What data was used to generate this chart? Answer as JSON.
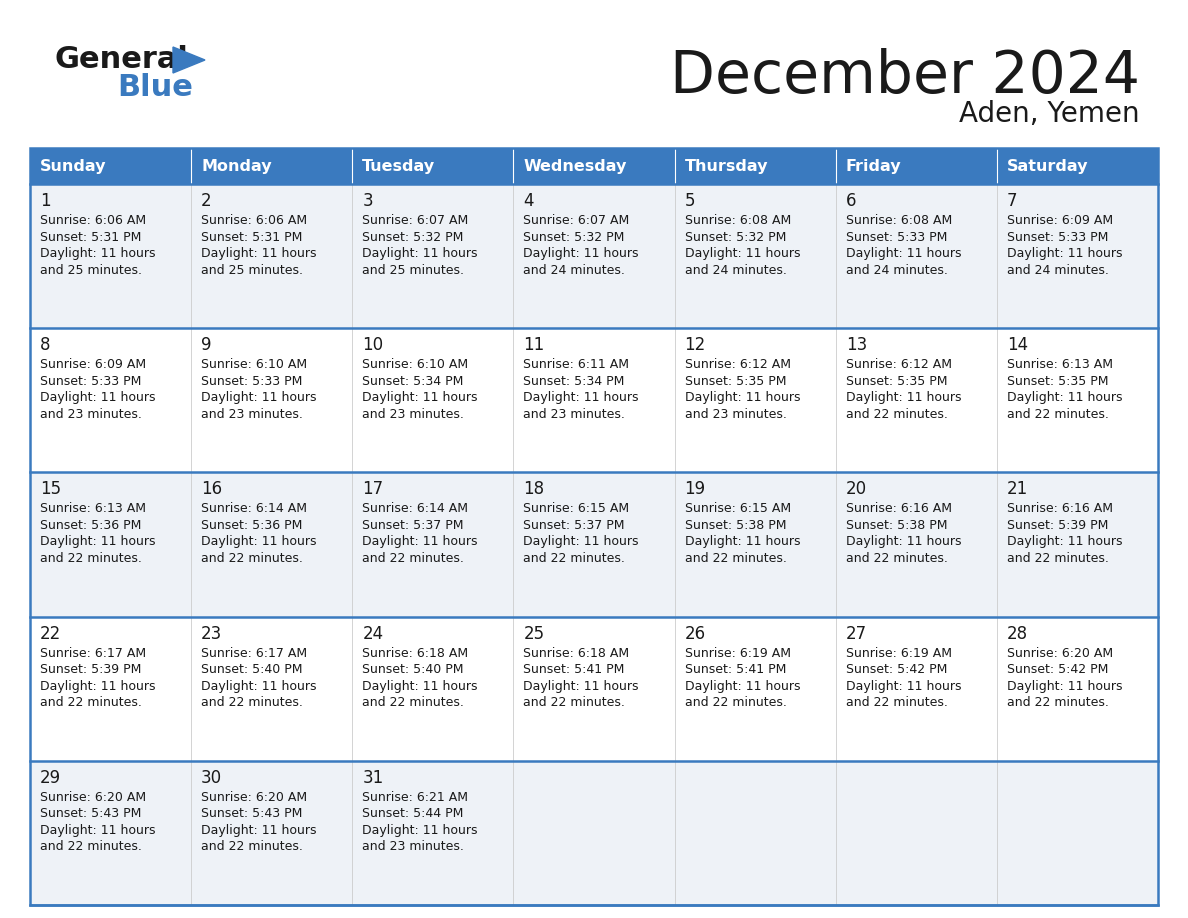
{
  "title": "December 2024",
  "subtitle": "Aden, Yemen",
  "header_color": "#3a7abf",
  "header_text_color": "#ffffff",
  "bg_color": "#ffffff",
  "cell_bg_even": "#eef2f7",
  "cell_bg_odd": "#ffffff",
  "row_line_color": "#3a7abf",
  "days_of_week": [
    "Sunday",
    "Monday",
    "Tuesday",
    "Wednesday",
    "Thursday",
    "Friday",
    "Saturday"
  ],
  "calendar": [
    [
      {
        "day": "1",
        "sunrise": "6:06 AM",
        "sunset": "5:31 PM",
        "daylight_h": "11 hours",
        "daylight_m": "25 minutes."
      },
      {
        "day": "2",
        "sunrise": "6:06 AM",
        "sunset": "5:31 PM",
        "daylight_h": "11 hours",
        "daylight_m": "25 minutes."
      },
      {
        "day": "3",
        "sunrise": "6:07 AM",
        "sunset": "5:32 PM",
        "daylight_h": "11 hours",
        "daylight_m": "25 minutes."
      },
      {
        "day": "4",
        "sunrise": "6:07 AM",
        "sunset": "5:32 PM",
        "daylight_h": "11 hours",
        "daylight_m": "24 minutes."
      },
      {
        "day": "5",
        "sunrise": "6:08 AM",
        "sunset": "5:32 PM",
        "daylight_h": "11 hours",
        "daylight_m": "24 minutes."
      },
      {
        "day": "6",
        "sunrise": "6:08 AM",
        "sunset": "5:33 PM",
        "daylight_h": "11 hours",
        "daylight_m": "24 minutes."
      },
      {
        "day": "7",
        "sunrise": "6:09 AM",
        "sunset": "5:33 PM",
        "daylight_h": "11 hours",
        "daylight_m": "24 minutes."
      }
    ],
    [
      {
        "day": "8",
        "sunrise": "6:09 AM",
        "sunset": "5:33 PM",
        "daylight_h": "11 hours",
        "daylight_m": "23 minutes."
      },
      {
        "day": "9",
        "sunrise": "6:10 AM",
        "sunset": "5:33 PM",
        "daylight_h": "11 hours",
        "daylight_m": "23 minutes."
      },
      {
        "day": "10",
        "sunrise": "6:10 AM",
        "sunset": "5:34 PM",
        "daylight_h": "11 hours",
        "daylight_m": "23 minutes."
      },
      {
        "day": "11",
        "sunrise": "6:11 AM",
        "sunset": "5:34 PM",
        "daylight_h": "11 hours",
        "daylight_m": "23 minutes."
      },
      {
        "day": "12",
        "sunrise": "6:12 AM",
        "sunset": "5:35 PM",
        "daylight_h": "11 hours",
        "daylight_m": "23 minutes."
      },
      {
        "day": "13",
        "sunrise": "6:12 AM",
        "sunset": "5:35 PM",
        "daylight_h": "11 hours",
        "daylight_m": "22 minutes."
      },
      {
        "day": "14",
        "sunrise": "6:13 AM",
        "sunset": "5:35 PM",
        "daylight_h": "11 hours",
        "daylight_m": "22 minutes."
      }
    ],
    [
      {
        "day": "15",
        "sunrise": "6:13 AM",
        "sunset": "5:36 PM",
        "daylight_h": "11 hours",
        "daylight_m": "22 minutes."
      },
      {
        "day": "16",
        "sunrise": "6:14 AM",
        "sunset": "5:36 PM",
        "daylight_h": "11 hours",
        "daylight_m": "22 minutes."
      },
      {
        "day": "17",
        "sunrise": "6:14 AM",
        "sunset": "5:37 PM",
        "daylight_h": "11 hours",
        "daylight_m": "22 minutes."
      },
      {
        "day": "18",
        "sunrise": "6:15 AM",
        "sunset": "5:37 PM",
        "daylight_h": "11 hours",
        "daylight_m": "22 minutes."
      },
      {
        "day": "19",
        "sunrise": "6:15 AM",
        "sunset": "5:38 PM",
        "daylight_h": "11 hours",
        "daylight_m": "22 minutes."
      },
      {
        "day": "20",
        "sunrise": "6:16 AM",
        "sunset": "5:38 PM",
        "daylight_h": "11 hours",
        "daylight_m": "22 minutes."
      },
      {
        "day": "21",
        "sunrise": "6:16 AM",
        "sunset": "5:39 PM",
        "daylight_h": "11 hours",
        "daylight_m": "22 minutes."
      }
    ],
    [
      {
        "day": "22",
        "sunrise": "6:17 AM",
        "sunset": "5:39 PM",
        "daylight_h": "11 hours",
        "daylight_m": "22 minutes."
      },
      {
        "day": "23",
        "sunrise": "6:17 AM",
        "sunset": "5:40 PM",
        "daylight_h": "11 hours",
        "daylight_m": "22 minutes."
      },
      {
        "day": "24",
        "sunrise": "6:18 AM",
        "sunset": "5:40 PM",
        "daylight_h": "11 hours",
        "daylight_m": "22 minutes."
      },
      {
        "day": "25",
        "sunrise": "6:18 AM",
        "sunset": "5:41 PM",
        "daylight_h": "11 hours",
        "daylight_m": "22 minutes."
      },
      {
        "day": "26",
        "sunrise": "6:19 AM",
        "sunset": "5:41 PM",
        "daylight_h": "11 hours",
        "daylight_m": "22 minutes."
      },
      {
        "day": "27",
        "sunrise": "6:19 AM",
        "sunset": "5:42 PM",
        "daylight_h": "11 hours",
        "daylight_m": "22 minutes."
      },
      {
        "day": "28",
        "sunrise": "6:20 AM",
        "sunset": "5:42 PM",
        "daylight_h": "11 hours",
        "daylight_m": "22 minutes."
      }
    ],
    [
      {
        "day": "29",
        "sunrise": "6:20 AM",
        "sunset": "5:43 PM",
        "daylight_h": "11 hours",
        "daylight_m": "22 minutes."
      },
      {
        "day": "30",
        "sunrise": "6:20 AM",
        "sunset": "5:43 PM",
        "daylight_h": "11 hours",
        "daylight_m": "22 minutes."
      },
      {
        "day": "31",
        "sunrise": "6:21 AM",
        "sunset": "5:44 PM",
        "daylight_h": "11 hours",
        "daylight_m": "23 minutes."
      },
      null,
      null,
      null,
      null
    ]
  ]
}
